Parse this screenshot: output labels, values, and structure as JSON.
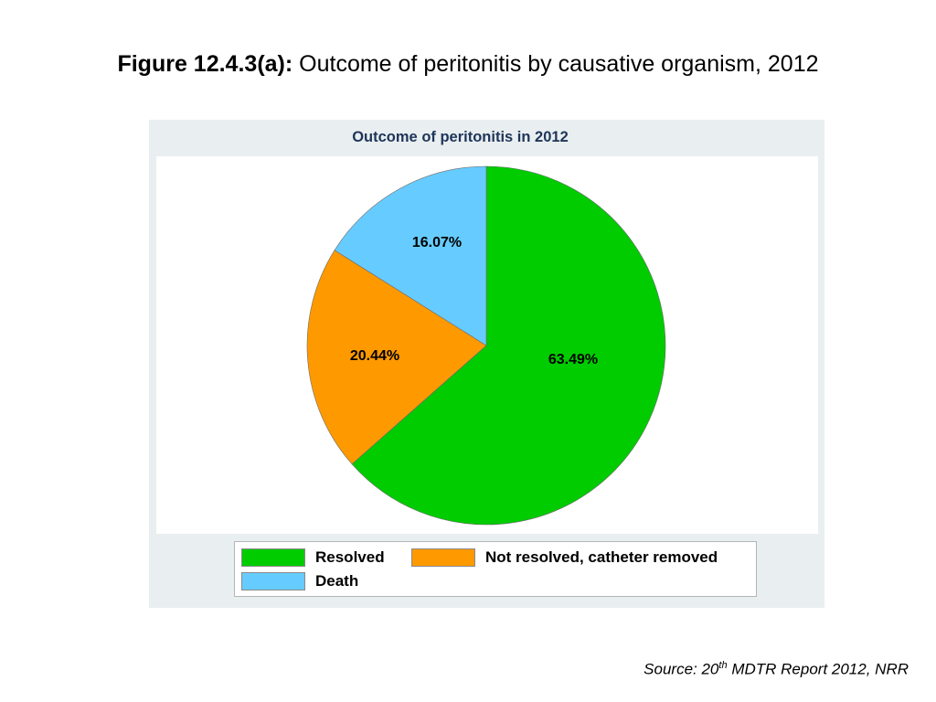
{
  "figure": {
    "title_bold": "Figure 12.4.3(a):",
    "title_rest": "Outcome of peritonitis by causative organism, 2012"
  },
  "source": {
    "prefix": "Source: 20",
    "superscript": "th",
    "suffix": "MDTR Report 2012, NRR"
  },
  "chart_data": {
    "type": "pie",
    "title": "Outcome of peritonitis in 2012",
    "legend_position": "bottom",
    "slices": [
      {
        "label": "Resolved",
        "value": 63.49,
        "value_label": "63.49%",
        "color": "#00cc00"
      },
      {
        "label": "Not resolved, catheter removed",
        "value": 20.44,
        "value_label": "20.44%",
        "color": "#ff9900"
      },
      {
        "label": "Death",
        "value": 16.07,
        "value_label": "16.07%",
        "color": "#66ccff"
      }
    ]
  }
}
